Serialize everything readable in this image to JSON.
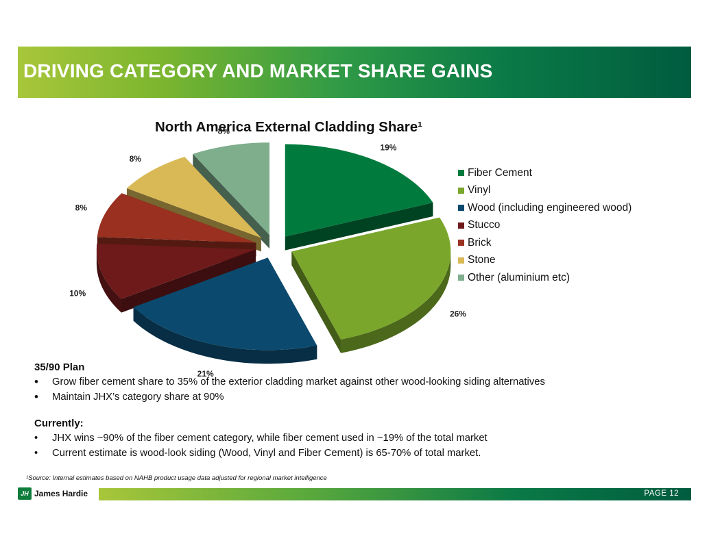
{
  "slide_title": "DRIVING CATEGORY AND MARKET SHARE GAINS",
  "chart_data": {
    "type": "pie",
    "title": "North America External Cladding Share¹",
    "legend_position": "right",
    "categories": [
      "Fiber Cement",
      "Vinyl",
      "Wood (including engineered wood)",
      "Stucco",
      "Brick",
      "Stone",
      "Other (aluminium etc)"
    ],
    "values": [
      19,
      26,
      21,
      10,
      8,
      8,
      8
    ],
    "labels": [
      "19%",
      "26%",
      "21%",
      "10%",
      "8%",
      "8%",
      "8%"
    ],
    "colors": [
      "#007a3d",
      "#7aa72b",
      "#0b4a6e",
      "#6e1a1b",
      "#993020",
      "#d9b956",
      "#7fae8d"
    ]
  },
  "plan": {
    "heading": "35/90 Plan",
    "bullets": [
      "Grow fiber cement share to 35% of the exterior cladding market against other wood-looking siding alternatives",
      "Maintain JHX’s category share at 90%"
    ]
  },
  "currently": {
    "heading": "Currently:",
    "bullets": [
      "JHX wins ~90% of the fiber cement category, while fiber cement used in ~19% of the total market",
      "Current estimate is wood-look siding (Wood, Vinyl and Fiber Cement) is 65-70% of total market."
    ]
  },
  "bullet_char": "•",
  "footnote": "¹Source: Internal estimates based on NAHB product usage data adjusted for regional market intelligence",
  "logo": {
    "mark": "JH",
    "name": "James Hardie"
  },
  "footer": {
    "page_label": "PAGE  12"
  }
}
